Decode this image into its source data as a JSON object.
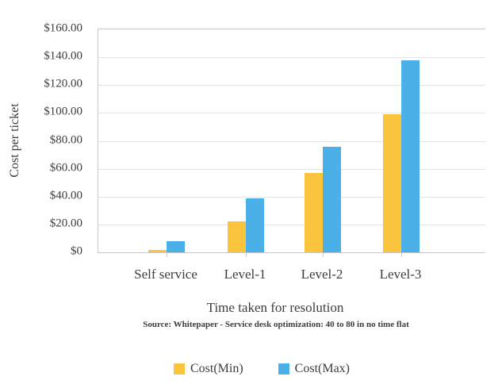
{
  "chart_data": {
    "type": "bar",
    "title": "",
    "categories": [
      "Self service",
      "Level-1",
      "Level-2",
      "Level-3"
    ],
    "series": [
      {
        "name": "Cost(Min)",
        "color": "#FAC43D",
        "values": [
          2,
          22,
          57,
          99
        ]
      },
      {
        "name": "Cost(Max)",
        "color": "#4BAFE8",
        "values": [
          8,
          39,
          76,
          138
        ]
      }
    ],
    "xlabel": "Time taken for resolution",
    "ylabel": "Cost per ticket",
    "ylim": [
      0,
      160
    ],
    "ytick_step": 20,
    "ytick_labels": [
      "$0",
      "$20.00",
      "$40.00",
      "$60.00",
      "$80.00",
      "$100.00",
      "$120.00",
      "$140.00",
      "$160.00"
    ],
    "grid": true,
    "legend_position": "bottom",
    "source_note": "Source: Whitepaper - Service desk optimization: 40 to 80 in no time flat",
    "colors": {
      "grid_line": "#E4E4E8",
      "axis_line": "#C9C9CD",
      "text": "#3D3D3D"
    }
  }
}
